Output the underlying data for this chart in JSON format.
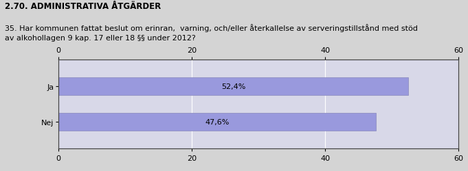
{
  "title": "2.70. ADMINISTRATIVA ÅTGÄRDER",
  "question": "35. Har kommunen fattat beslut om erinran,  varning, och/eller återkallelse av serveringstillstånd med stöd\nav alkohollagen 9 kap. 17 eller 18 §§ under 2012?",
  "categories": [
    "Nej",
    "Ja"
  ],
  "values": [
    47.6,
    52.4
  ],
  "labels": [
    "47,6%",
    "52,4%"
  ],
  "bar_color": "#9999dd",
  "bar_edge_color": "#8888bb",
  "plot_bg_color": "#d8d8e8",
  "background_color": "#d4d4d4",
  "xlim": [
    0,
    60
  ],
  "xticks": [
    0,
    20,
    40,
    60
  ],
  "title_fontsize": 8.5,
  "question_fontsize": 8,
  "label_fontsize": 8,
  "tick_fontsize": 8,
  "category_fontsize": 8,
  "bar_height": 0.5
}
